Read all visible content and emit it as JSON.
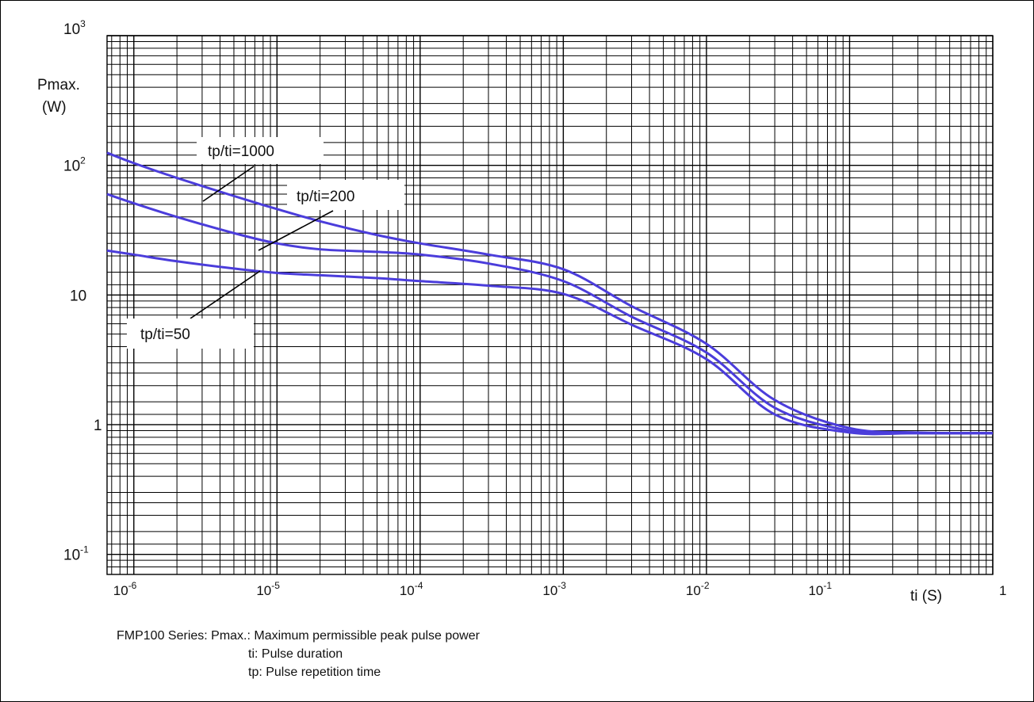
{
  "chart_data": {
    "type": "line",
    "x_scale": "log",
    "y_scale": "log",
    "xlim": [
      6.5e-07,
      1
    ],
    "ylim": [
      0.07,
      1000
    ],
    "grid": true,
    "ylabel_line1": "Pmax.",
    "ylabel_line2": "(W)",
    "xlabel": "ti (S)",
    "y_ticks": [
      {
        "value": 1000,
        "base": "10",
        "exp": "3"
      },
      {
        "value": 100,
        "base": "10",
        "exp": "2"
      },
      {
        "value": 10,
        "base": "10",
        "exp": ""
      },
      {
        "value": 1,
        "base": "1",
        "exp": ""
      },
      {
        "value": 0.1,
        "base": "10",
        "exp": "-1"
      }
    ],
    "x_ticks": [
      {
        "value": 1e-06,
        "base": "10",
        "exp": "-6"
      },
      {
        "value": 1e-05,
        "base": "10",
        "exp": "-5"
      },
      {
        "value": 0.0001,
        "base": "10",
        "exp": "-4"
      },
      {
        "value": 0.001,
        "base": "10",
        "exp": "-3"
      },
      {
        "value": 0.01,
        "base": "10",
        "exp": "-2"
      },
      {
        "value": 0.1,
        "base": "10",
        "exp": "-1"
      },
      {
        "value": 1,
        "base": "1",
        "exp": ""
      }
    ],
    "line_color": "#4b3ddb",
    "series": [
      {
        "name": "tp/ti=1000",
        "x": [
          6.5e-07,
          1e-06,
          2e-06,
          5e-06,
          1e-05,
          2e-05,
          5e-05,
          0.0001,
          0.0003,
          0.001,
          0.003,
          0.01,
          0.03,
          0.1,
          0.3,
          1
        ],
        "y": [
          125,
          104,
          80,
          58,
          46,
          37,
          29,
          25,
          20.5,
          15.8,
          8.2,
          4.2,
          1.55,
          0.94,
          0.87,
          0.86
        ]
      },
      {
        "name": "tp/ti=200",
        "x": [
          6.5e-07,
          1e-06,
          2e-06,
          5e-06,
          1e-05,
          2e-05,
          5e-05,
          0.0001,
          0.0003,
          0.001,
          0.003,
          0.01,
          0.03,
          0.1,
          0.3,
          1
        ],
        "y": [
          60,
          51,
          40,
          30,
          25,
          22.5,
          21.5,
          20.5,
          17.5,
          12.8,
          6.8,
          3.6,
          1.35,
          0.9,
          0.86,
          0.86
        ]
      },
      {
        "name": "tp/ti=50",
        "x": [
          6.5e-07,
          1e-06,
          2e-06,
          5e-06,
          1e-05,
          2e-05,
          5e-05,
          0.0001,
          0.0003,
          0.001,
          0.003,
          0.01,
          0.03,
          0.1,
          0.3,
          1
        ],
        "y": [
          22,
          20.5,
          18.2,
          16,
          14.8,
          14.2,
          13.5,
          12.8,
          11.8,
          10.2,
          5.9,
          3.2,
          1.2,
          0.87,
          0.86,
          0.86
        ]
      }
    ]
  },
  "caption": {
    "line1": "FMP100 Series: Pmax.: Maximum permissible peak pulse power",
    "line2": "ti: Pulse duration",
    "line3": "tp: Pulse repetition time"
  }
}
